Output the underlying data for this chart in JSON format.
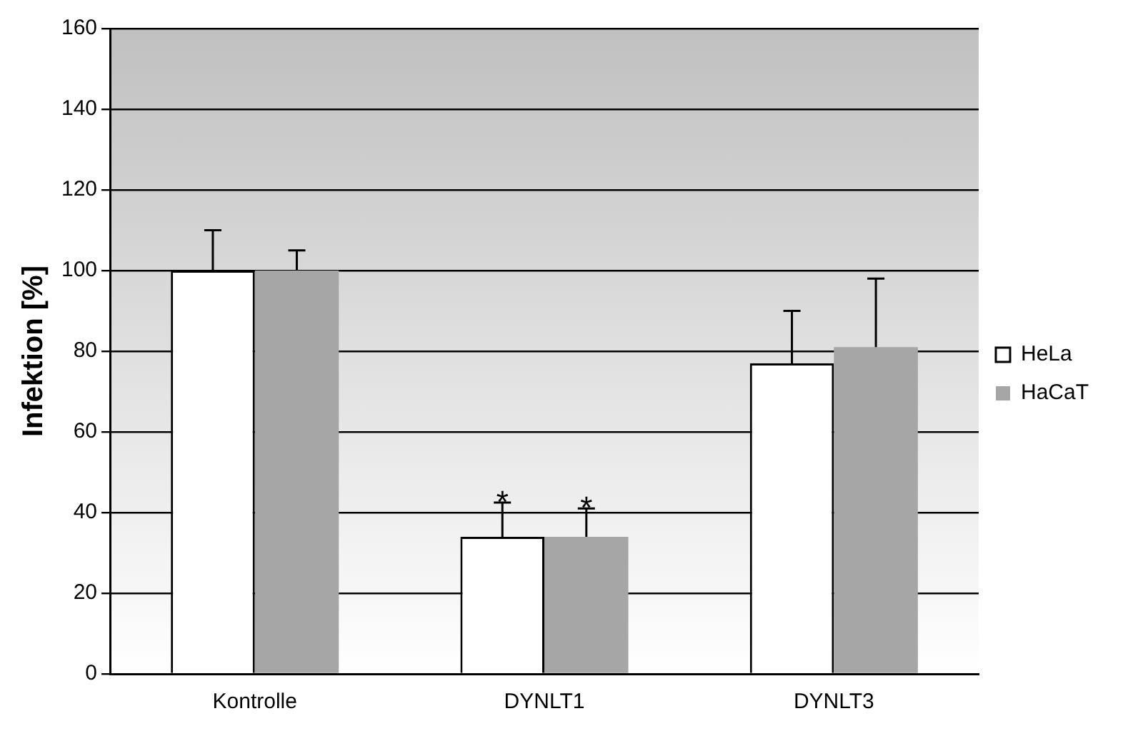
{
  "chart_data": {
    "type": "bar",
    "ylabel": "Infektion [%]",
    "categories": [
      "Kontrolle",
      "DYNLT1",
      "DYNLT3"
    ],
    "series": [
      {
        "name": "HeLa",
        "color": "#ffffff",
        "values": [
          100,
          34,
          77
        ],
        "errors": [
          [
            100,
            110
          ],
          [
            34,
            42.5
          ],
          [
            77,
            90
          ]
        ]
      },
      {
        "name": "HaCaT",
        "color": "#a6a6a6",
        "values": [
          100,
          34,
          81
        ],
        "errors": [
          [
            100,
            105
          ],
          [
            34,
            41
          ],
          [
            81,
            98
          ]
        ]
      }
    ],
    "ylim": [
      0,
      160
    ],
    "yticks": [
      0,
      20,
      40,
      60,
      80,
      100,
      120,
      140,
      160
    ],
    "grid": "y",
    "legend": "right",
    "annotations": [
      {
        "text": "*",
        "x": "DYNLT1",
        "y": 34
      },
      {
        "text": "*",
        "x": "DYNLT1",
        "y": 34
      }
    ]
  }
}
